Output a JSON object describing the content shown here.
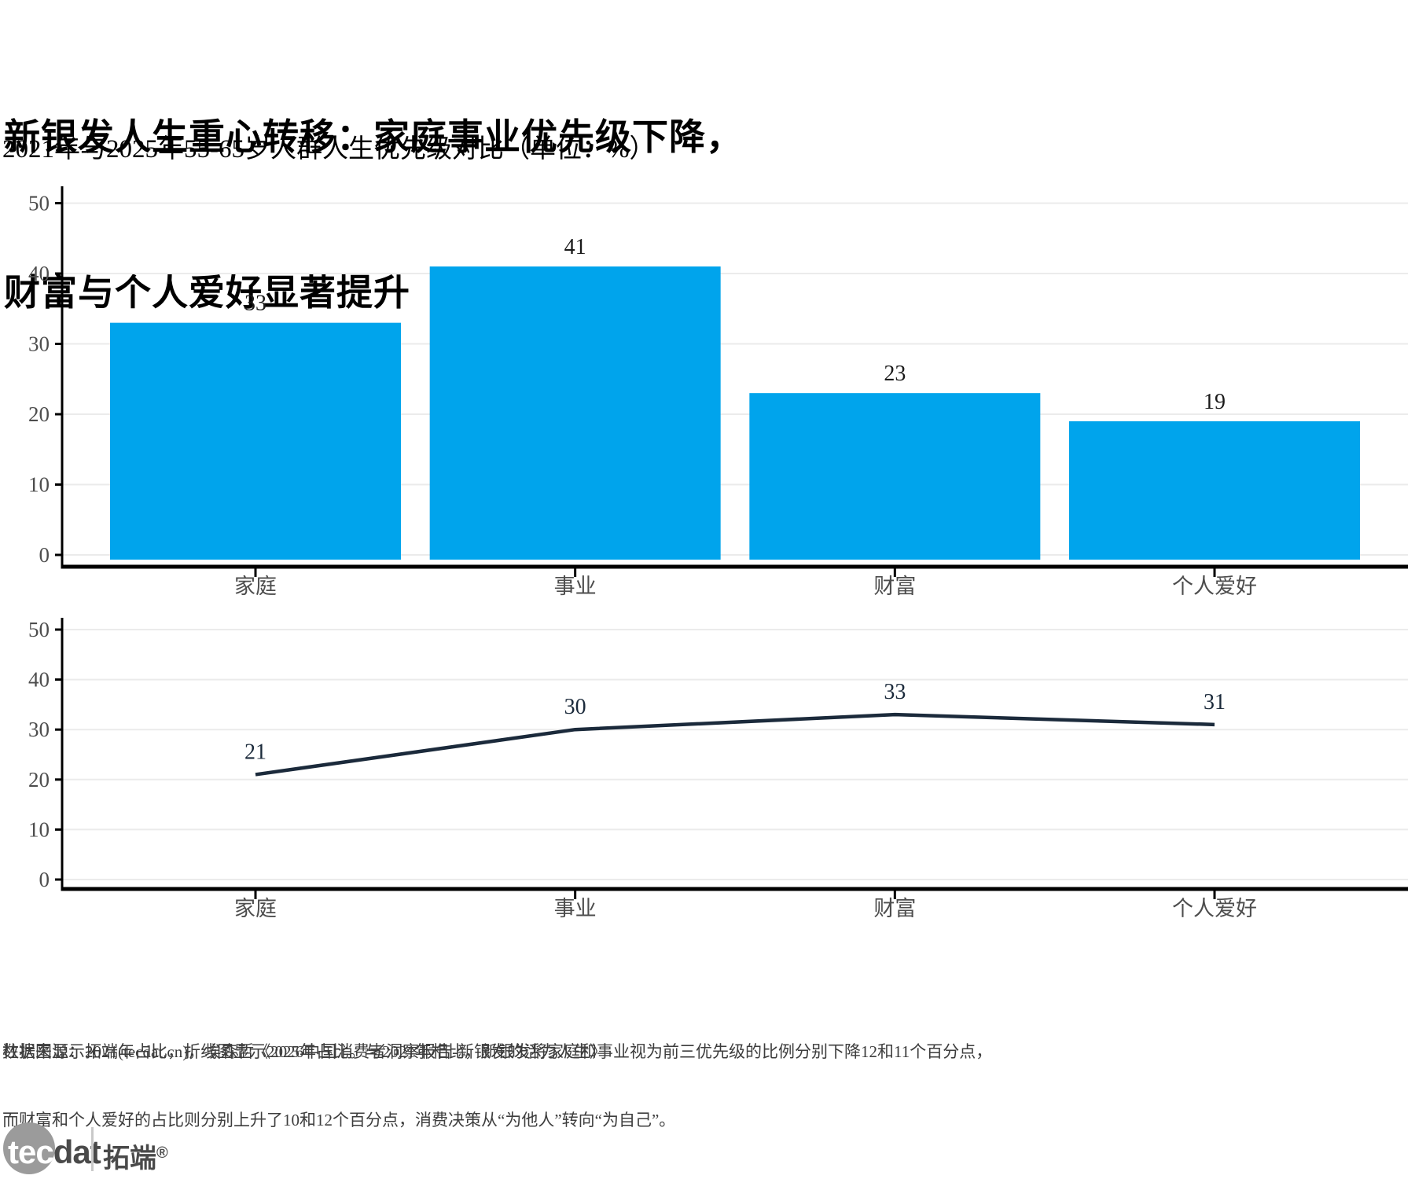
{
  "header": {
    "title_line1": "新银发人生重心转移：家庭事业优先级下降，",
    "title_line2": "财富与个人爱好显著提升",
    "subtitle": "2021年与2025年55-65岁人群人生优先级对比（单位：%）"
  },
  "chart_data": [
    {
      "type": "bar",
      "series_name": "2021年占比",
      "categories": [
        "家庭",
        "事业",
        "财富",
        "个人爱好"
      ],
      "values": [
        33,
        41,
        23,
        19
      ],
      "unit": "%",
      "ylim": [
        0,
        50
      ],
      "yticks": [
        0,
        10,
        20,
        30,
        40,
        50
      ],
      "grid": true,
      "legend": "none",
      "bar_color": "#00A4EC",
      "value_label_color": "#1a1a1a",
      "axis_color": "#000000",
      "tick_label_color": "#4d4d4d",
      "grid_color": "#ebebeb"
    },
    {
      "type": "line",
      "series_name": "2025年占比",
      "categories": [
        "家庭",
        "事业",
        "财富",
        "个人爱好"
      ],
      "values": [
        21,
        30,
        33,
        31
      ],
      "unit": "%",
      "ylim": [
        0,
        50
      ],
      "yticks": [
        0,
        10,
        20,
        30,
        40,
        50
      ],
      "grid": true,
      "legend": "none",
      "line_color": "#1B2A3B",
      "value_label_color": "#1B2A3B",
      "axis_color": "#000000",
      "tick_label_color": "#4d4d4d",
      "grid_color": "#ebebeb"
    }
  ],
  "footer": {
    "note_line1": "柱状图显示2021年占比，折线图显示2025年占比。与2021年相比，新银发将家庭和事业视为前三优先级的比例分别下降12和11个百分点，",
    "note_line2": "而财富和个人爱好的占比则分别上升了10和12个百分点，消费决策从“为他人”转向“为自己”。",
    "source": "数据来源：拓端(tecdat.cn)，埃森哲《2026中国消费者洞察报告-新银发的活力人生》"
  },
  "logo": {
    "brand_tec": "tec",
    "brand_dat": "dat",
    "brand_cn": "拓端",
    "registered": "®",
    "circle_color": "#9b9b9b",
    "text_color": "#4a4a4a"
  }
}
